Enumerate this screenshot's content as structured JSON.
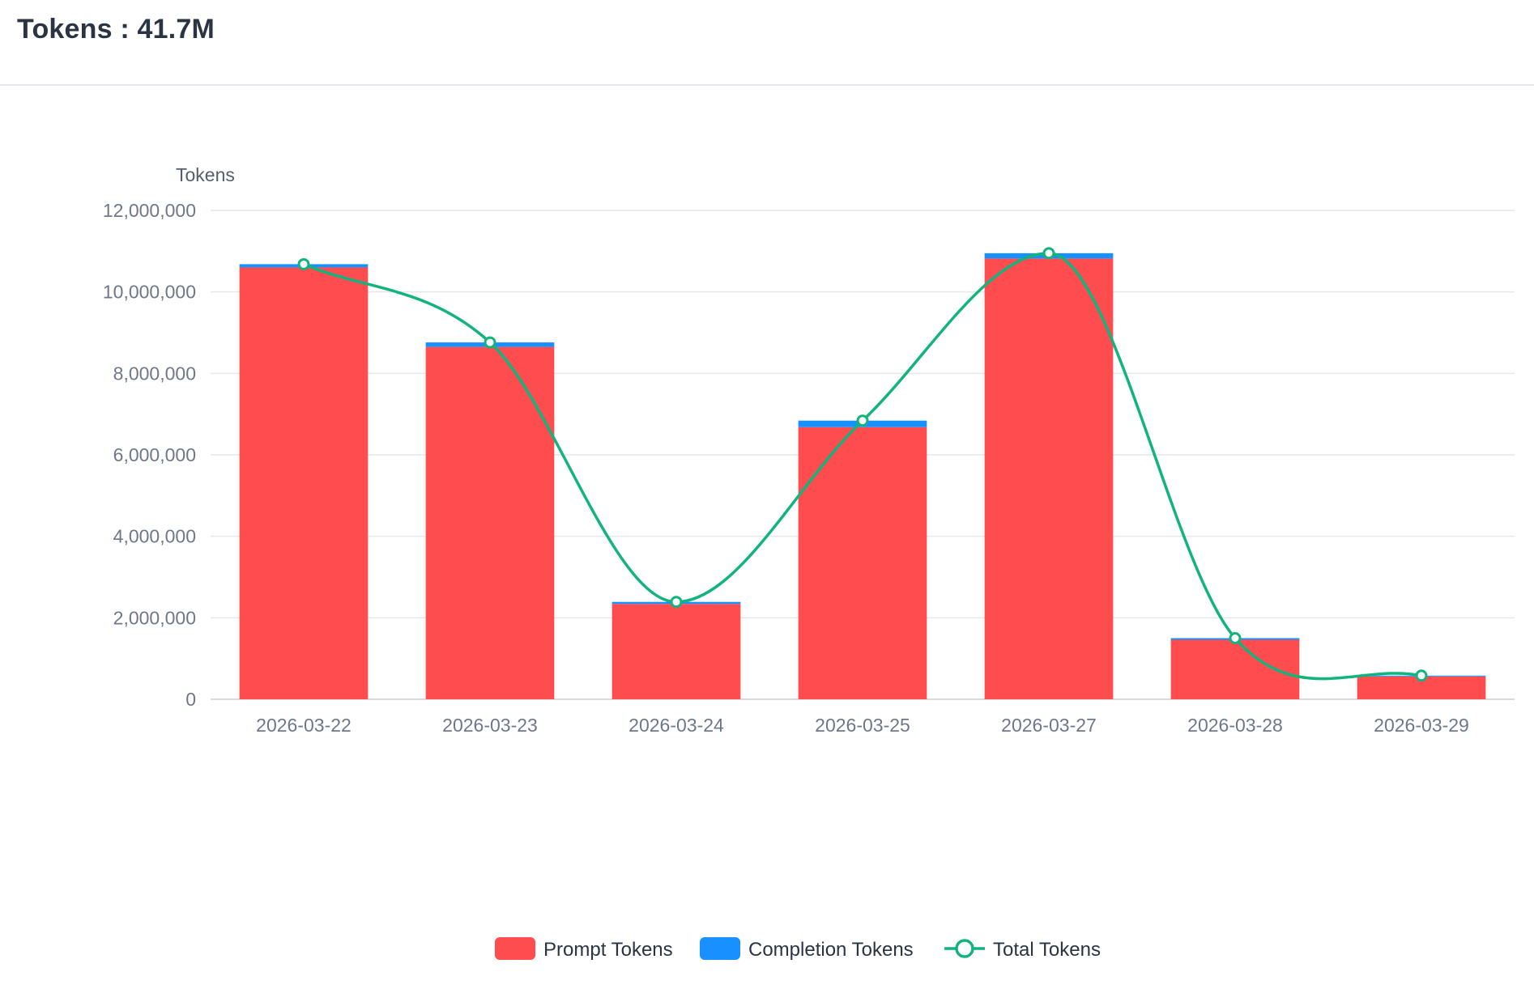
{
  "header": {
    "title": "Tokens : 41.7M"
  },
  "chart_data": {
    "type": "bar",
    "stacked": true,
    "categories": [
      "2026-03-22",
      "2026-03-23",
      "2026-03-24",
      "2026-03-25",
      "2026-03-27",
      "2026-03-28",
      "2026-03-29"
    ],
    "series": [
      {
        "name": "Prompt Tokens",
        "type": "bar",
        "color": "#ff4d4f",
        "values": [
          10600000,
          8650000,
          2340000,
          6680000,
          10820000,
          1460000,
          560000
        ]
      },
      {
        "name": "Completion Tokens",
        "type": "bar",
        "color": "#1890ff",
        "values": [
          80000,
          110000,
          50000,
          160000,
          130000,
          40000,
          20000
        ]
      },
      {
        "name": "Total Tokens",
        "type": "line",
        "smooth": true,
        "color": "#13b37e",
        "values": [
          10680000,
          8760000,
          2390000,
          6840000,
          10950000,
          1500000,
          580000
        ]
      }
    ],
    "ylabel": "Tokens",
    "ylim": [
      0,
      12000000
    ],
    "yticks": [
      "0",
      "2,000,000",
      "4,000,000",
      "6,000,000",
      "8,000,000",
      "10,000,000",
      "12,000,000"
    ],
    "grid": true,
    "legend_position": "bottom-center"
  }
}
